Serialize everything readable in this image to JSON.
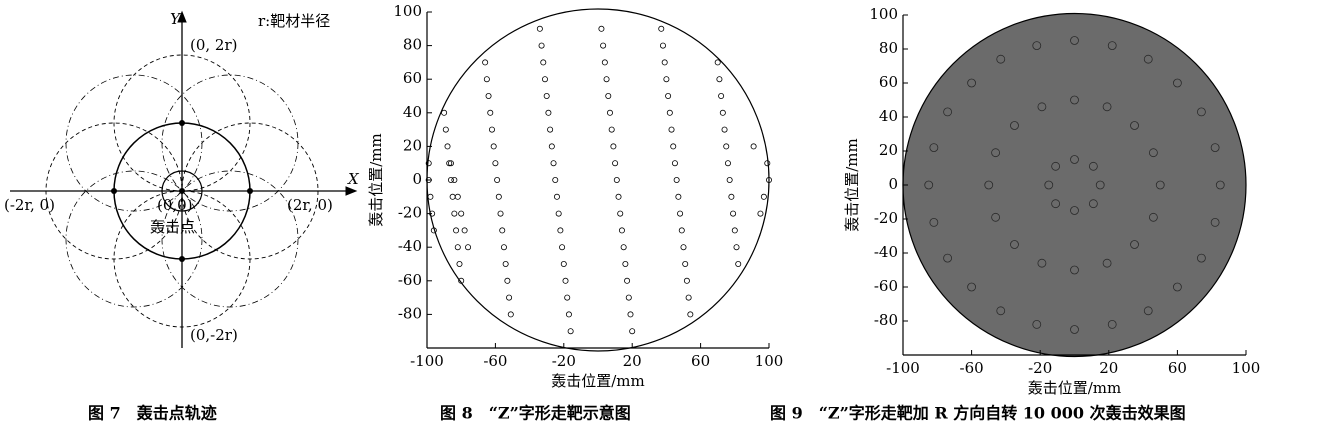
{
  "diagram": {
    "y_axis": "Y",
    "x_axis": "X",
    "legend": "r:靶材半径",
    "top": "(0, 2r)",
    "origin": "(0,0)",
    "left": "(-2r, 0)",
    "right": "(2r, 0)",
    "bottom": "(0,-2r)",
    "point": "轰击点",
    "caption": "图 7　轰击点轨迹"
  },
  "chart_data": [
    {
      "type": "scatter",
      "caption": "图 8　“Z”字形走靶示意图",
      "x_label": "轰击位置/mm",
      "y_label": "轰击位置/mm",
      "xlim": [
        -100,
        100
      ],
      "ylim": [
        -100,
        100
      ],
      "xticks": [
        -100,
        -60,
        -20,
        20,
        60,
        100
      ],
      "yticks": [
        -80,
        -60,
        -40,
        -20,
        0,
        20,
        40,
        60,
        80,
        100
      ],
      "color": "#000000",
      "series": [
        {
          "color": "#000000",
          "x": [
            -99,
            -99,
            -98,
            -97,
            -96,
            -90,
            -89,
            -88,
            -87,
            -86,
            -85,
            -84,
            -83,
            -82,
            -81,
            -80,
            -86,
            -84,
            -82,
            -80,
            -78,
            -76,
            -66,
            -65,
            -64,
            -63,
            -62,
            -61,
            -60,
            -59,
            -58,
            -57,
            -56,
            -55,
            -54,
            -53,
            -52,
            -51,
            -34,
            -33,
            -32,
            -31,
            -30,
            -29,
            -28,
            -27,
            -26,
            -25,
            -24,
            -23,
            -22,
            -21,
            -20,
            -19,
            -18,
            -17,
            -16,
            2,
            3,
            4,
            5,
            6,
            7,
            8,
            9,
            10,
            11,
            12,
            13,
            14,
            15,
            16,
            17,
            18,
            19,
            20,
            37,
            38,
            39,
            40,
            41,
            42,
            43,
            44,
            45,
            46,
            47,
            48,
            49,
            50,
            51,
            52,
            53,
            54,
            70,
            71,
            72,
            73,
            74,
            75,
            76,
            77,
            78,
            79,
            80,
            81,
            82,
            91,
            99,
            100,
            97,
            95
          ],
          "values": [
            10,
            0,
            -10,
            -20,
            -30,
            40,
            30,
            20,
            10,
            0,
            -10,
            -20,
            -30,
            -40,
            -50,
            -60,
            10,
            0,
            -10,
            -20,
            -30,
            -40,
            70,
            60,
            50,
            40,
            30,
            20,
            10,
            0,
            -10,
            -20,
            -30,
            -40,
            -50,
            -60,
            -70,
            -80,
            90,
            80,
            70,
            60,
            50,
            40,
            30,
            20,
            10,
            0,
            -10,
            -20,
            -30,
            -40,
            -50,
            -60,
            -70,
            -80,
            -90,
            90,
            80,
            70,
            60,
            50,
            40,
            30,
            20,
            10,
            0,
            -10,
            -20,
            -30,
            -40,
            -50,
            -60,
            -70,
            -80,
            -90,
            90,
            80,
            70,
            60,
            50,
            40,
            30,
            20,
            10,
            0,
            -10,
            -20,
            -30,
            -40,
            -50,
            -60,
            -70,
            -80,
            70,
            60,
            50,
            40,
            30,
            20,
            10,
            0,
            -10,
            -20,
            -30,
            -40,
            -50,
            20,
            10,
            0,
            -10,
            -20
          ]
        }
      ]
    },
    {
      "type": "scatter",
      "caption": "图 9　“Z”字形走靶加 R 方向自转 10 000 次轰击效果图",
      "x_label": "轰击位置/mm",
      "y_label": "轰击位置/mm",
      "xlim": [
        -100,
        100
      ],
      "ylim": [
        -100,
        100
      ],
      "xticks": [
        -100,
        -60,
        -20,
        20,
        60,
        100
      ],
      "yticks": [
        -80,
        -60,
        -40,
        -20,
        0,
        20,
        40,
        60,
        80,
        100
      ],
      "color": "#2a2a2a",
      "fill": "#6b6b6b",
      "series": [
        {
          "color": "#2a2a2a",
          "x": [
            15,
            11,
            0,
            -11,
            -15,
            -11,
            0,
            11,
            50,
            46,
            35,
            19,
            0,
            -19,
            -35,
            -46,
            -50,
            -46,
            -35,
            -19,
            0,
            19,
            35,
            46,
            85,
            82,
            74,
            60,
            43,
            22,
            0,
            -22,
            -43,
            -60,
            -74,
            -82,
            -85,
            -82,
            -74,
            -60,
            -43,
            -22,
            0,
            22,
            43,
            60,
            74,
            82
          ],
          "values": [
            0,
            11,
            15,
            11,
            0,
            -11,
            -15,
            -11,
            0,
            19,
            35,
            46,
            50,
            46,
            35,
            19,
            0,
            -19,
            -35,
            -46,
            -50,
            -46,
            -35,
            -19,
            0,
            22,
            43,
            60,
            74,
            82,
            85,
            82,
            74,
            60,
            43,
            22,
            0,
            -22,
            -43,
            -60,
            -74,
            -82,
            -85,
            -82,
            -74,
            -60,
            -43,
            -22
          ]
        }
      ]
    }
  ]
}
